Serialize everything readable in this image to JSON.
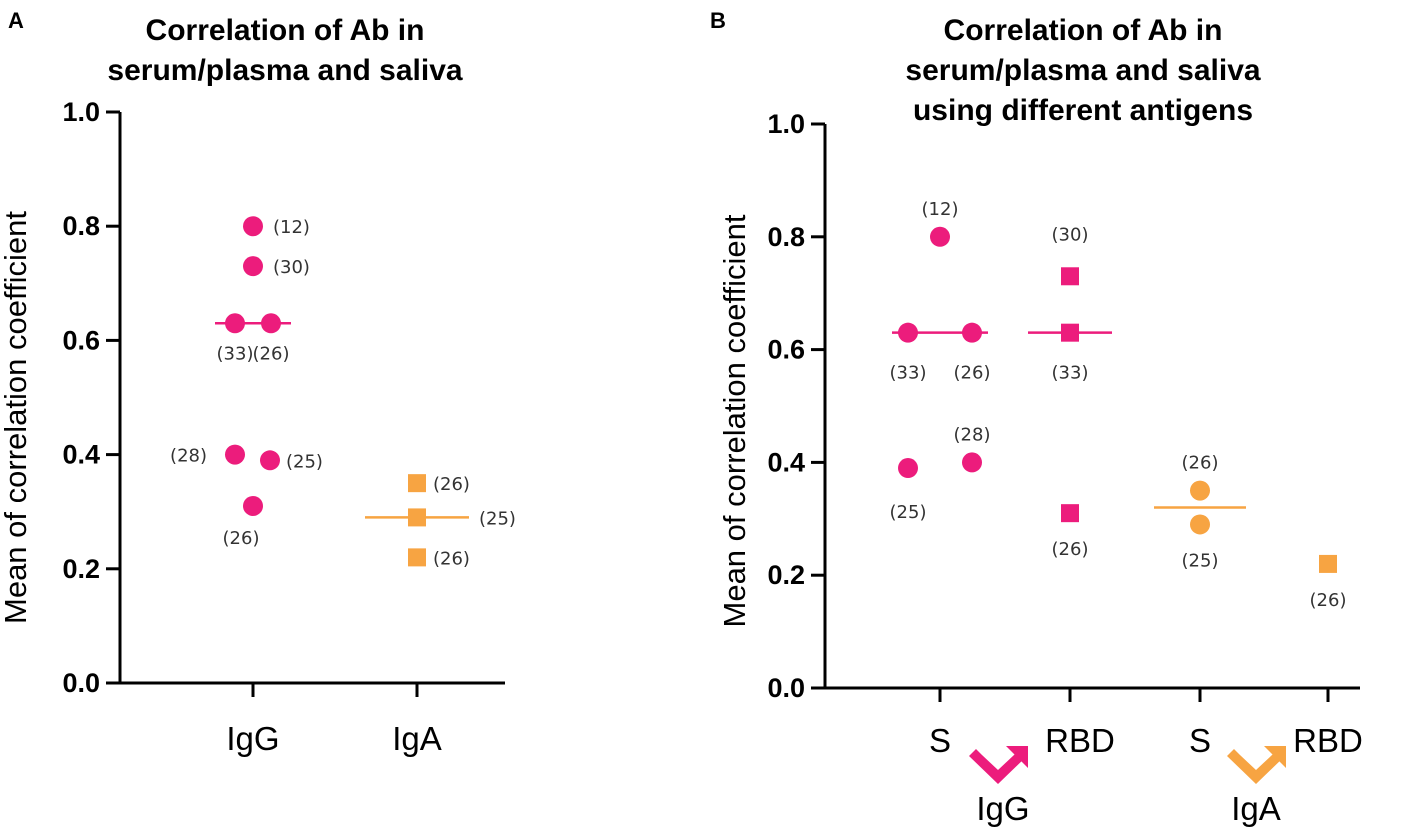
{
  "colors": {
    "igg": "#ec1c7c",
    "iga": "#f7a442",
    "axis": "#000000"
  },
  "chart_data": [
    {
      "panel": "A",
      "type": "scatter",
      "title_lines": [
        "Correlation of Ab in",
        "serum/plasma and saliva"
      ],
      "ylabel": "Mean of correlation coefficient",
      "xlabel": "",
      "ylim": [
        0,
        1.0
      ],
      "yticks": [
        "0.0",
        "0.2",
        "0.4",
        "0.6",
        "0.8",
        "1.0"
      ],
      "categories": [
        "IgG",
        "IgA"
      ],
      "series": [
        {
          "name": "IgG",
          "category": "IgG",
          "marker": "circle",
          "color": "#ec1c7c",
          "median": 0.63,
          "points": [
            {
              "y": 0.8,
              "label": "(12)"
            },
            {
              "y": 0.73,
              "label": "(30)"
            },
            {
              "y": 0.63,
              "label": "(33)"
            },
            {
              "y": 0.63,
              "label": "(26)"
            },
            {
              "y": 0.4,
              "label": "(28)"
            },
            {
              "y": 0.39,
              "label": "(25)"
            },
            {
              "y": 0.31,
              "label": "(26)"
            }
          ]
        },
        {
          "name": "IgA",
          "category": "IgA",
          "marker": "square",
          "color": "#f7a442",
          "median": 0.29,
          "points": [
            {
              "y": 0.35,
              "label": "(26)"
            },
            {
              "y": 0.29,
              "label": "(25)"
            },
            {
              "y": 0.22,
              "label": "(26)"
            }
          ]
        }
      ]
    },
    {
      "panel": "B",
      "type": "scatter",
      "title_lines": [
        "Correlation of Ab in",
        "serum/plasma and saliva",
        "using different antigens"
      ],
      "ylabel": "Mean of correlation coefficient",
      "xlabel": "",
      "ylim": [
        0,
        1.0
      ],
      "yticks": [
        "0.0",
        "0.2",
        "0.4",
        "0.6",
        "0.8",
        "1.0"
      ],
      "categories": [
        "S",
        "RBD",
        "S",
        "RBD"
      ],
      "groups": [
        "IgG",
        "IgA"
      ],
      "series": [
        {
          "name": "IgG S",
          "category": "S",
          "group": "IgG",
          "marker": "circle",
          "color": "#ec1c7c",
          "median": 0.63,
          "points": [
            {
              "y": 0.8,
              "label": "(12)"
            },
            {
              "y": 0.63,
              "label": "(33)"
            },
            {
              "y": 0.63,
              "label": "(26)"
            },
            {
              "y": 0.4,
              "label": "(28)"
            },
            {
              "y": 0.39,
              "label": "(25)"
            }
          ]
        },
        {
          "name": "IgG RBD",
          "category": "RBD",
          "group": "IgG",
          "marker": "square",
          "color": "#ec1c7c",
          "median": 0.63,
          "points": [
            {
              "y": 0.73,
              "label": "(30)"
            },
            {
              "y": 0.63,
              "label": "(33)"
            },
            {
              "y": 0.31,
              "label": "(26)"
            }
          ]
        },
        {
          "name": "IgA S",
          "category": "S",
          "group": "IgA",
          "marker": "circle",
          "color": "#f7a442",
          "median": 0.32,
          "points": [
            {
              "y": 0.35,
              "label": "(26)"
            },
            {
              "y": 0.29,
              "label": "(25)"
            }
          ]
        },
        {
          "name": "IgA RBD",
          "category": "RBD",
          "group": "IgA",
          "marker": "square",
          "color": "#f7a442",
          "median": null,
          "points": [
            {
              "y": 0.22,
              "label": "(26)"
            }
          ]
        }
      ]
    }
  ]
}
